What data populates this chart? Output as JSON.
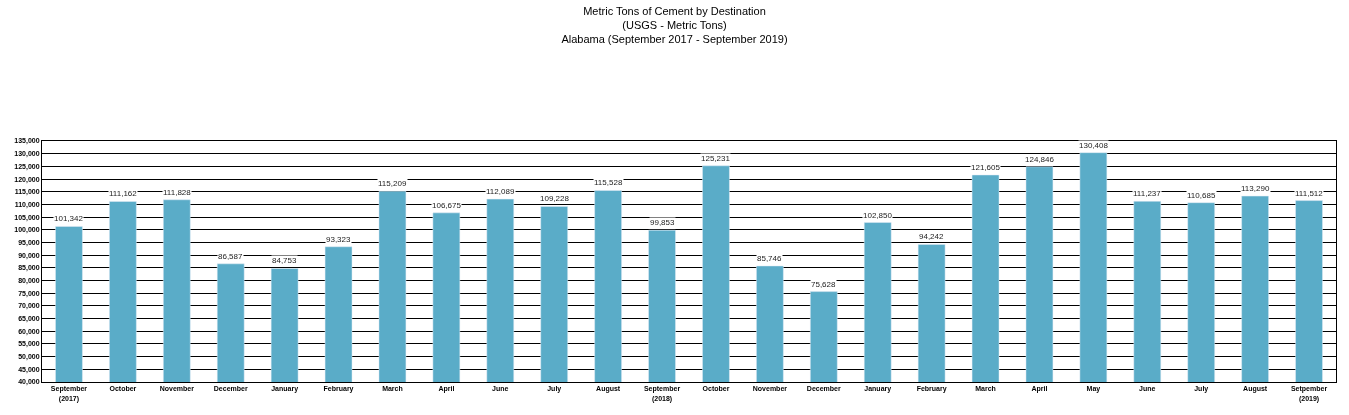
{
  "chart_data": {
    "type": "bar",
    "title": "Metric Tons of Cement by Destination\n(USGS - Metric Tons)\nAlabama (September 2017 - September 2019)",
    "categories": [
      "September\n(2017)",
      "October",
      "November",
      "December",
      "January",
      "February",
      "March",
      "April",
      "June",
      "July",
      "August",
      "September\n(2018)",
      "October",
      "November",
      "December",
      "January",
      "February",
      "March",
      "April",
      "May",
      "June",
      "July",
      "August",
      "Setpember\n(2019)"
    ],
    "values": [
      101342,
      111162,
      111828,
      86587,
      84753,
      93323,
      115209,
      106675,
      112089,
      109228,
      115528,
      99853,
      125231,
      85746,
      75628,
      102850,
      94242,
      121605,
      124846,
      130408,
      111237,
      110685,
      113290,
      111512
    ],
    "color": "#5aacc8",
    "ylim": [
      40000,
      135000
    ],
    "yticks": [
      {
        "value": 40000,
        "label": "40,000"
      },
      {
        "value": 45000,
        "label": "45,000"
      },
      {
        "value": 50000,
        "label": "50,000"
      },
      {
        "value": 55000,
        "label": "55,000"
      },
      {
        "value": 60000,
        "label": "60,000"
      },
      {
        "value": 65000,
        "label": "65,000"
      },
      {
        "value": 70000,
        "label": "70,000"
      },
      {
        "value": 75000,
        "label": "75,000"
      },
      {
        "value": 80000,
        "label": "80,000"
      },
      {
        "value": 85000,
        "label": "85,000"
      },
      {
        "value": 90000,
        "label": "90,000"
      },
      {
        "value": 95000,
        "label": "95,000"
      },
      {
        "value": 100000,
        "label": "100,000"
      },
      {
        "value": 105000,
        "label": "105,000"
      },
      {
        "value": 110000,
        "label": "110,000"
      },
      {
        "value": 115000,
        "label": "115,000"
      },
      {
        "value": 120000,
        "label": "120,000"
      },
      {
        "value": 125000,
        "label": "125,000"
      },
      {
        "value": 130000,
        "label": "130,000"
      },
      {
        "value": 135000,
        "label": "135,000"
      }
    ],
    "value_labels": [
      "101,342",
      "111,162",
      "111,828",
      "86,587",
      "84,753",
      "93,323",
      "115,209",
      "106,675",
      "112,089",
      "109,228",
      "115,528",
      "99,853",
      "125,231",
      "85,746",
      "75,628",
      "102,850",
      "94,242",
      "121,605",
      "124,846",
      "130,408",
      "111,237",
      "110,685",
      "113,290",
      "111,512"
    ],
    "grid": "y",
    "legend": false
  }
}
